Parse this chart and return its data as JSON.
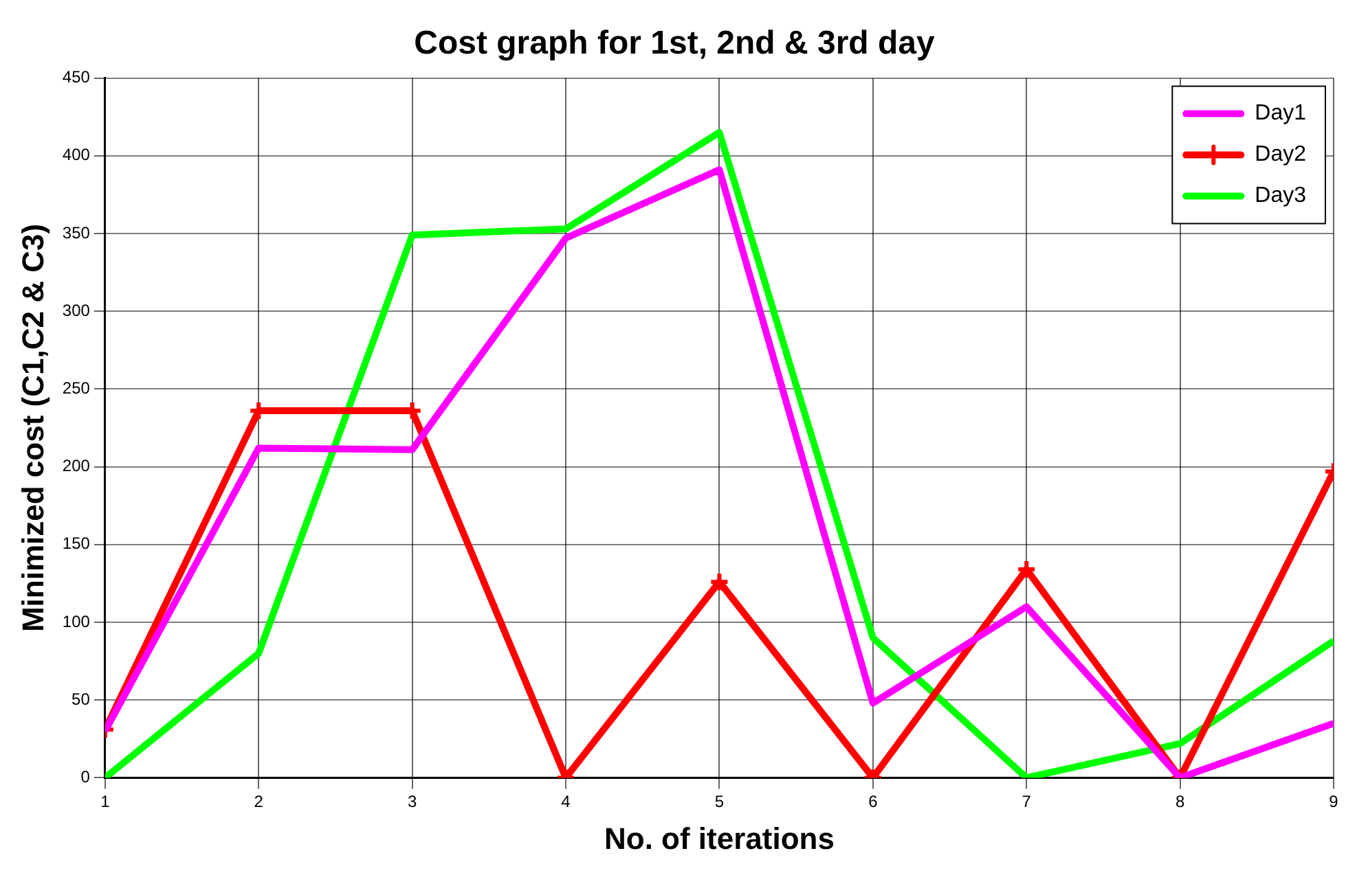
{
  "chart_data": {
    "type": "line",
    "title": "Cost graph for 1st, 2nd & 3rd day",
    "xlabel": "No. of iterations",
    "ylabel": "Minimized cost (C1,C2 & C3)",
    "x": [
      1,
      2,
      3,
      4,
      5,
      6,
      7,
      8,
      9
    ],
    "series": [
      {
        "name": "Day1",
        "color": "#ff00ff",
        "marker": "none",
        "values": [
          30,
          212,
          211,
          347,
          391,
          48,
          110,
          0,
          35
        ]
      },
      {
        "name": "Day2",
        "color": "#ff0000",
        "marker": "cross",
        "values": [
          31,
          236,
          236,
          0,
          126,
          0,
          134,
          0,
          197
        ]
      },
      {
        "name": "Day3",
        "color": "#00ff00",
        "marker": "none",
        "values": [
          0,
          80,
          349,
          353,
          415,
          90,
          0,
          22,
          88
        ]
      }
    ],
    "xlim": [
      1,
      9
    ],
    "xticks": [
      1,
      2,
      3,
      4,
      5,
      6,
      7,
      8,
      9
    ],
    "ylim": [
      0,
      450
    ],
    "yticks": [
      0,
      50,
      100,
      150,
      200,
      250,
      300,
      350,
      400,
      450
    ],
    "grid": true,
    "legend": "top right",
    "line_style": "solid"
  }
}
